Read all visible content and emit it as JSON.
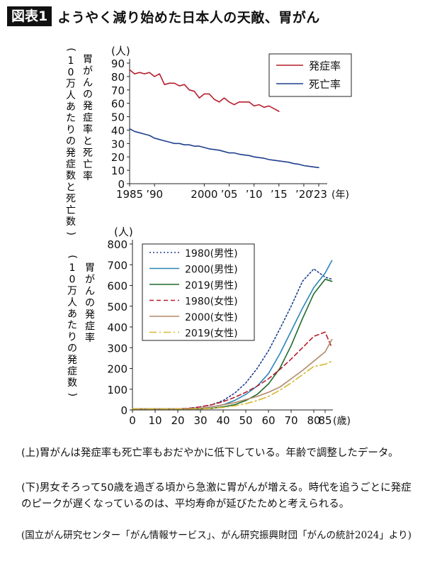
{
  "header": {
    "badge": "図表1",
    "title": "ようやく減り始めた日本人の天敵、胃がん"
  },
  "chart_data": [
    {
      "type": "line",
      "unit_label": "(人)",
      "ylabel_main": "胃がんの発症率と死亡率",
      "ylabel_sub": "(10万人あたりの発症数と死亡数)",
      "x_unit": "(年)",
      "xlim": [
        1985,
        2023
      ],
      "ylim": [
        0,
        90
      ],
      "yticks": [
        0,
        10,
        20,
        30,
        40,
        50,
        60,
        70,
        80,
        90
      ],
      "xticks": [
        {
          "value": 1985,
          "label": "1985"
        },
        {
          "value": 1990,
          "label": "’90"
        },
        {
          "value": 2000,
          "label": "2000"
        },
        {
          "value": 2005,
          "label": "’05"
        },
        {
          "value": 2010,
          "label": "’10"
        },
        {
          "value": 2015,
          "label": "’15"
        },
        {
          "value": 2020,
          "label": "’20"
        },
        {
          "value": 2023,
          "label": "’23"
        }
      ],
      "legend_position": "top-right",
      "series": [
        {
          "name": "発症率",
          "color": "#b71c2c",
          "x": [
            1985,
            1986,
            1987,
            1988,
            1989,
            1990,
            1991,
            1992,
            1993,
            1994,
            1995,
            1996,
            1997,
            1998,
            1999,
            2000,
            2001,
            2002,
            2003,
            2004,
            2005,
            2006,
            2007,
            2008,
            2009,
            2010,
            2011,
            2012,
            2013,
            2014,
            2015
          ],
          "y": [
            85,
            82,
            83,
            82,
            83,
            80,
            82,
            74,
            75,
            75,
            73,
            74,
            70,
            69,
            64,
            67,
            67,
            63,
            61,
            64,
            61,
            59,
            61,
            61,
            61,
            58,
            59,
            57,
            58,
            56,
            54
          ]
        },
        {
          "name": "死亡率",
          "color": "#1f3f8f",
          "x": [
            1985,
            1986,
            1987,
            1988,
            1989,
            1990,
            1991,
            1992,
            1993,
            1994,
            1995,
            1996,
            1997,
            1998,
            1999,
            2000,
            2001,
            2002,
            2003,
            2004,
            2005,
            2006,
            2007,
            2008,
            2009,
            2010,
            2011,
            2012,
            2013,
            2014,
            2015,
            2016,
            2017,
            2018,
            2019,
            2020,
            2021,
            2022,
            2023
          ],
          "y": [
            41,
            39,
            38,
            37,
            36,
            34,
            33,
            32,
            31,
            30,
            30,
            29,
            29,
            28,
            28,
            27,
            26,
            25.5,
            25,
            24,
            23,
            23,
            22,
            21.5,
            21,
            20,
            19.5,
            19,
            18,
            17.5,
            17,
            16.5,
            16,
            15,
            14.5,
            13.5,
            13,
            12.5,
            12
          ]
        }
      ]
    },
    {
      "type": "line",
      "unit_label": "(人)",
      "ylabel_main": "胃がんの発症率",
      "ylabel_sub": "(10万人あたりの発症数)",
      "x_unit": "(歳)",
      "xlim": [
        0,
        85
      ],
      "ylim": [
        0,
        800
      ],
      "yticks": [
        0,
        100,
        200,
        300,
        400,
        500,
        600,
        700,
        800
      ],
      "xticks": [
        {
          "value": 0,
          "label": "0"
        },
        {
          "value": 10,
          "label": "10"
        },
        {
          "value": 20,
          "label": "20"
        },
        {
          "value": 30,
          "label": "30"
        },
        {
          "value": 40,
          "label": "40"
        },
        {
          "value": 50,
          "label": "50"
        },
        {
          "value": 60,
          "label": "60"
        },
        {
          "value": 70,
          "label": "70"
        },
        {
          "value": 80,
          "label": "80"
        },
        {
          "value": 85,
          "label": "85"
        }
      ],
      "legend_position": "top-left",
      "series": [
        {
          "name": "1980(男性)",
          "color": "#1f3f8f",
          "dash": "dot",
          "x": [
            0,
            5,
            10,
            15,
            20,
            25,
            30,
            35,
            40,
            45,
            50,
            55,
            60,
            65,
            70,
            75,
            80,
            85,
            88
          ],
          "y": [
            5,
            5,
            5,
            5,
            5,
            8,
            15,
            25,
            45,
            80,
            130,
            200,
            285,
            390,
            500,
            620,
            680,
            640,
            630
          ]
        },
        {
          "name": "2000(男性)",
          "color": "#2a86b8",
          "dash": "solid",
          "x": [
            0,
            5,
            10,
            15,
            20,
            25,
            30,
            35,
            40,
            45,
            50,
            55,
            60,
            65,
            70,
            75,
            80,
            85,
            88
          ],
          "y": [
            5,
            5,
            5,
            5,
            5,
            5,
            8,
            15,
            25,
            45,
            75,
            115,
            175,
            270,
            380,
            490,
            590,
            660,
            720
          ]
        },
        {
          "name": "2019(男性)",
          "color": "#1f6b2c",
          "dash": "solid",
          "x": [
            0,
            5,
            10,
            15,
            20,
            25,
            30,
            35,
            40,
            45,
            50,
            55,
            60,
            65,
            70,
            75,
            80,
            85,
            88
          ],
          "y": [
            5,
            5,
            5,
            5,
            5,
            5,
            5,
            8,
            15,
            25,
            45,
            75,
            125,
            200,
            310,
            440,
            560,
            630,
            620
          ]
        },
        {
          "name": "1980(女性)",
          "color": "#b71c2c",
          "dash": "dash",
          "x": [
            0,
            5,
            10,
            15,
            20,
            25,
            30,
            35,
            40,
            45,
            50,
            55,
            60,
            65,
            70,
            75,
            80,
            85,
            88
          ],
          "y": [
            5,
            5,
            5,
            5,
            5,
            8,
            15,
            25,
            40,
            60,
            85,
            115,
            150,
            195,
            245,
            300,
            355,
            375,
            300
          ]
        },
        {
          "name": "2000(女性)",
          "color": "#b08a6a",
          "dash": "solid",
          "x": [
            0,
            5,
            10,
            15,
            20,
            25,
            30,
            35,
            40,
            45,
            50,
            55,
            60,
            65,
            70,
            75,
            80,
            85,
            88
          ],
          "y": [
            5,
            5,
            5,
            5,
            5,
            5,
            8,
            15,
            25,
            35,
            50,
            65,
            85,
            110,
            150,
            190,
            235,
            280,
            340
          ]
        },
        {
          "name": "2019(女性)",
          "color": "#d4b830",
          "dash": "dashdot",
          "x": [
            0,
            5,
            10,
            15,
            20,
            25,
            30,
            35,
            40,
            45,
            50,
            55,
            60,
            65,
            70,
            75,
            80,
            85,
            88
          ],
          "y": [
            5,
            5,
            5,
            5,
            5,
            5,
            5,
            8,
            12,
            20,
            30,
            45,
            65,
            95,
            130,
            170,
            210,
            220,
            235
          ]
        }
      ]
    }
  ],
  "caption": {
    "upper": "(上)胃がんは発症率も死亡率もおだやかに低下している。年齢で調整したデータ。",
    "lower": "(下)男女そろって50歳を過ぎる頃から急激に胃がんが増える。時代を追うごとに発症のピークが遅くなっているのは、平均寿命が延びたためと考えられる。",
    "source": "(国立がん研究センター「がん情報サービス」、がん研究振興財団「がんの統計2024」より)"
  }
}
